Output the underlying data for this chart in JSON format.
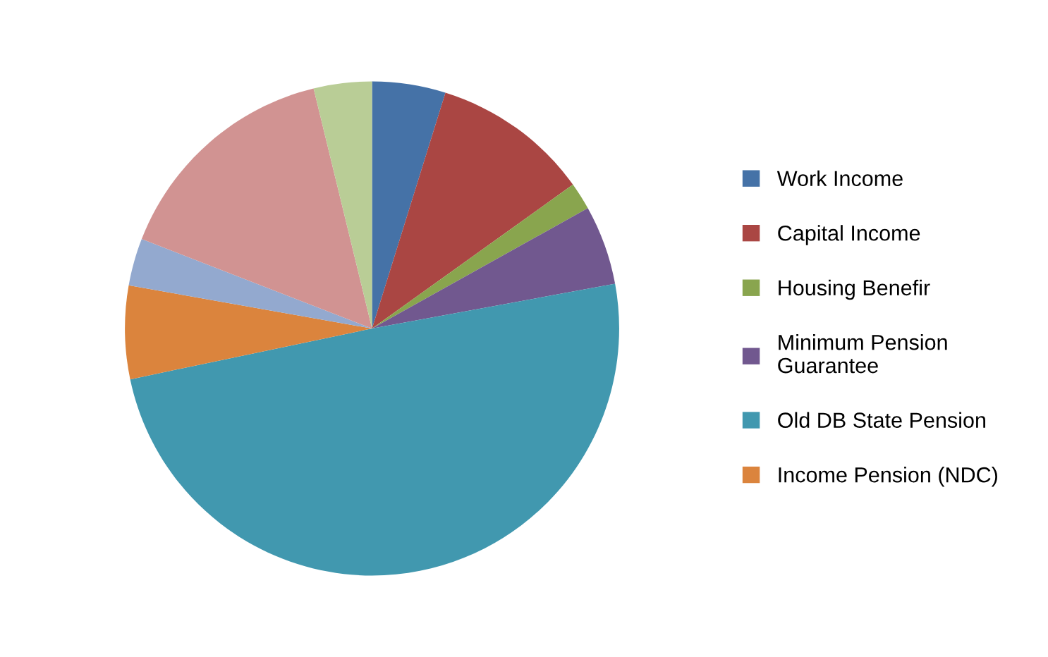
{
  "chart_data": {
    "type": "pie",
    "categories": [
      "Work Income",
      "Capital Income",
      "Housing Benefir",
      "Minimum Pension Guarantee",
      "Old DB State Pension",
      "Income Pension (NDC)",
      null,
      null,
      null
    ],
    "values": [
      4.8,
      10.3,
      1.8,
      5.2,
      49.6,
      6.1,
      3.1,
      15.3,
      3.8
    ],
    "colors": [
      "#4572a7",
      "#aa4643",
      "#89a54e",
      "#71588f",
      "#4198af",
      "#db843d",
      "#93a9cf",
      "#d19392",
      "#b9cd96"
    ],
    "legend": "right"
  }
}
